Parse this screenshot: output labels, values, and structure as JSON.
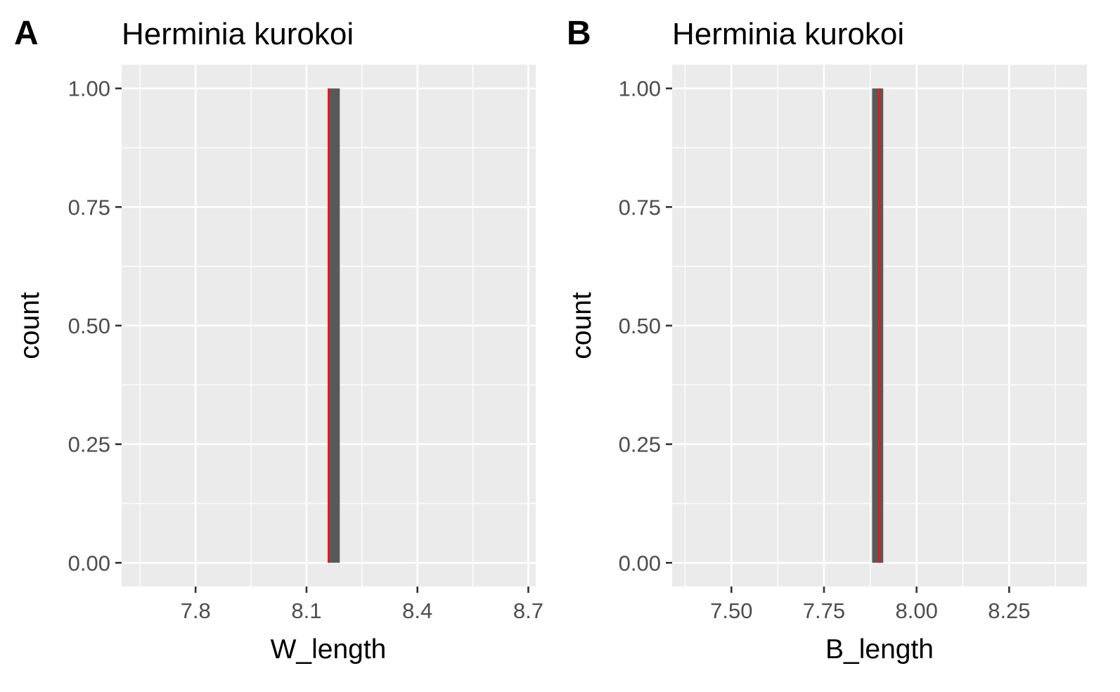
{
  "chart_data": [
    {
      "type": "bar",
      "panel_label": "A",
      "title": "Herminia kurokoi",
      "xlabel": "W_length",
      "ylabel": "count",
      "xlim": [
        7.6,
        8.72
      ],
      "ylim": [
        -0.05,
        1.05
      ],
      "x_ticks": [
        "7.8",
        "8.1",
        "8.4",
        "8.7"
      ],
      "x_tick_values": [
        7.8,
        8.1,
        8.4,
        8.7
      ],
      "y_ticks": [
        "0.00",
        "0.25",
        "0.50",
        "0.75",
        "1.00"
      ],
      "y_tick_values": [
        0,
        0.25,
        0.5,
        0.75,
        1
      ],
      "bars": [
        {
          "xmin": 8.16,
          "xmax": 8.19,
          "count": 1
        }
      ],
      "vline": {
        "x": 8.16,
        "color": "#e41a1c"
      },
      "bar_color": "#595959",
      "panel_background": "#ebebeb",
      "grid": true
    },
    {
      "type": "bar",
      "panel_label": "B",
      "title": "Herminia kurokoi",
      "xlabel": "B_length",
      "ylabel": "count",
      "xlim": [
        7.34,
        8.46
      ],
      "ylim": [
        -0.05,
        1.05
      ],
      "x_ticks": [
        "7.50",
        "7.75",
        "8.00",
        "8.25"
      ],
      "x_tick_values": [
        7.5,
        7.75,
        8.0,
        8.25
      ],
      "y_ticks": [
        "0.00",
        "0.25",
        "0.50",
        "0.75",
        "1.00"
      ],
      "y_tick_values": [
        0,
        0.25,
        0.5,
        0.75,
        1
      ],
      "bars": [
        {
          "xmin": 7.88,
          "xmax": 7.91,
          "count": 1
        }
      ],
      "vline": {
        "x": 7.9,
        "color": "#e41a1c"
      },
      "bar_color": "#595959",
      "panel_background": "#ebebeb",
      "grid": true
    }
  ]
}
